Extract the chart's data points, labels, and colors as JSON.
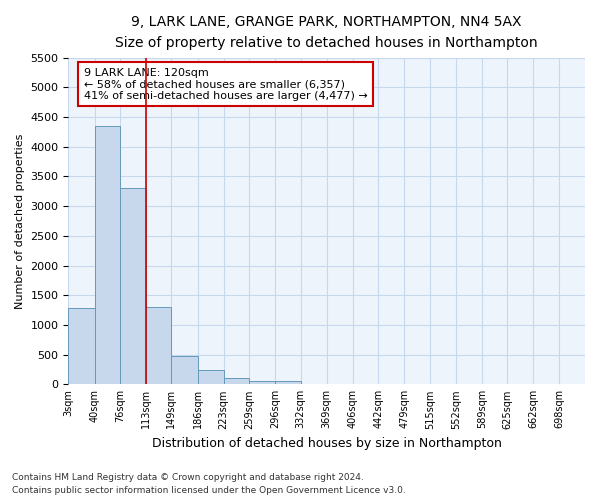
{
  "title1": "9, LARK LANE, GRANGE PARK, NORTHAMPTON, NN4 5AX",
  "title2": "Size of property relative to detached houses in Northampton",
  "xlabel": "Distribution of detached houses by size in Northampton",
  "ylabel": "Number of detached properties",
  "annotation_title": "9 LARK LANE: 120sqm",
  "annotation_line1": "← 58% of detached houses are smaller (6,357)",
  "annotation_line2": "41% of semi-detached houses are larger (4,477) →",
  "footnote1": "Contains HM Land Registry data © Crown copyright and database right 2024.",
  "footnote2": "Contains public sector information licensed under the Open Government Licence v3.0.",
  "bar_edges": [
    3,
    40,
    76,
    113,
    149,
    186,
    223,
    259,
    296,
    332,
    369,
    406,
    442,
    479,
    515,
    552,
    589,
    625,
    662,
    698,
    735
  ],
  "bar_heights": [
    1280,
    4350,
    3300,
    1300,
    480,
    240,
    100,
    50,
    50,
    0,
    0,
    0,
    0,
    0,
    0,
    0,
    0,
    0,
    0,
    0
  ],
  "bar_color": "#c8d8ec",
  "bar_edge_color": "#6699bb",
  "vline_x": 113,
  "vline_color": "#cc0000",
  "annotation_box_color": "#cc0000",
  "ylim": [
    0,
    5500
  ],
  "xlim": [
    3,
    735
  ],
  "background_color": "#ffffff",
  "plot_bg_color": "#eef4fb",
  "grid_color": "#c5d8ee",
  "title1_fontsize": 10.5,
  "title2_fontsize": 9.5
}
